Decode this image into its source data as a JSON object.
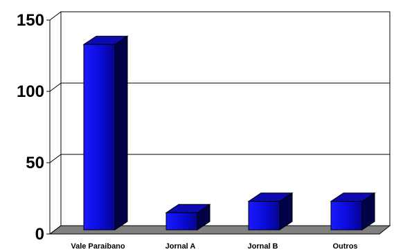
{
  "chart_data": {
    "type": "bar",
    "categories": [
      "Vale Paraibano",
      "Jornal A",
      "Jornal B",
      "Outros"
    ],
    "values": [
      130,
      12,
      20,
      20
    ],
    "ylim": [
      0,
      150
    ],
    "yticks": [
      "0",
      "50",
      "100",
      "150"
    ],
    "grid": true,
    "style": "3d-column",
    "colors": {
      "bar_front": "#0a0ad8",
      "bar_top": "#0b0bb0",
      "bar_side": "#020248",
      "floor": "#808080",
      "grid": "#000000"
    }
  }
}
